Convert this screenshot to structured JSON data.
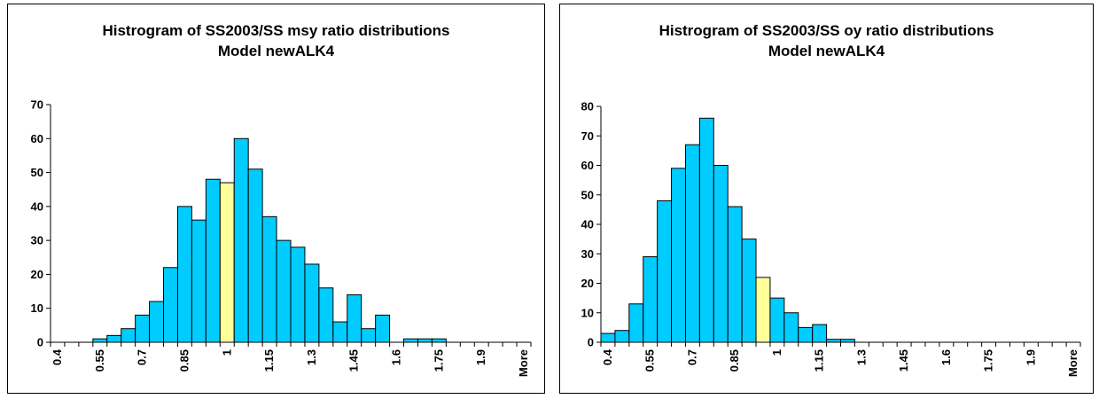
{
  "chart_data": [
    {
      "type": "bar",
      "title": "Histrogram of SS2003/SS msy ratio distributions",
      "subtitle": "Model newALK4",
      "ylim": [
        0,
        70
      ],
      "yticks": [
        0,
        10,
        20,
        30,
        40,
        50,
        60,
        70
      ],
      "tick_labels": [
        "0.4",
        "0.55",
        "0.7",
        "0.85",
        "1",
        "1.15",
        "1.3",
        "1.45",
        "1.6",
        "1.75",
        "1.9",
        "More"
      ],
      "values": [
        0,
        0,
        0,
        1,
        2,
        4,
        8,
        12,
        22,
        40,
        36,
        48,
        47,
        60,
        51,
        37,
        30,
        28,
        23,
        16,
        6,
        14,
        4,
        8,
        0,
        1,
        1,
        1,
        0,
        0,
        0,
        0,
        0,
        0
      ],
      "highlight_index": 12,
      "bar_color": "#00CCFF",
      "highlight_color": "#FFFF99",
      "grid": false,
      "legend": "none"
    },
    {
      "type": "bar",
      "title": "Histrogram of SS2003/SS oy ratio distributions",
      "subtitle": "Model newALK4",
      "ylim": [
        0,
        80
      ],
      "yticks": [
        0,
        10,
        20,
        30,
        40,
        50,
        60,
        70,
        80
      ],
      "tick_labels": [
        "0.4",
        "0.55",
        "0.7",
        "0.85",
        "1",
        "1.15",
        "1.3",
        "1.45",
        "1.6",
        "1.75",
        "1.9",
        "More"
      ],
      "values": [
        3,
        4,
        13,
        29,
        48,
        59,
        67,
        76,
        60,
        46,
        35,
        22,
        15,
        10,
        5,
        6,
        1,
        1,
        0,
        0,
        0,
        0,
        0,
        0,
        0,
        0,
        0,
        0,
        0,
        0,
        0,
        0,
        0,
        0
      ],
      "highlight_index": 11,
      "bar_color": "#00CCFF",
      "highlight_color": "#FFFF99",
      "grid": false,
      "legend": "none"
    }
  ]
}
